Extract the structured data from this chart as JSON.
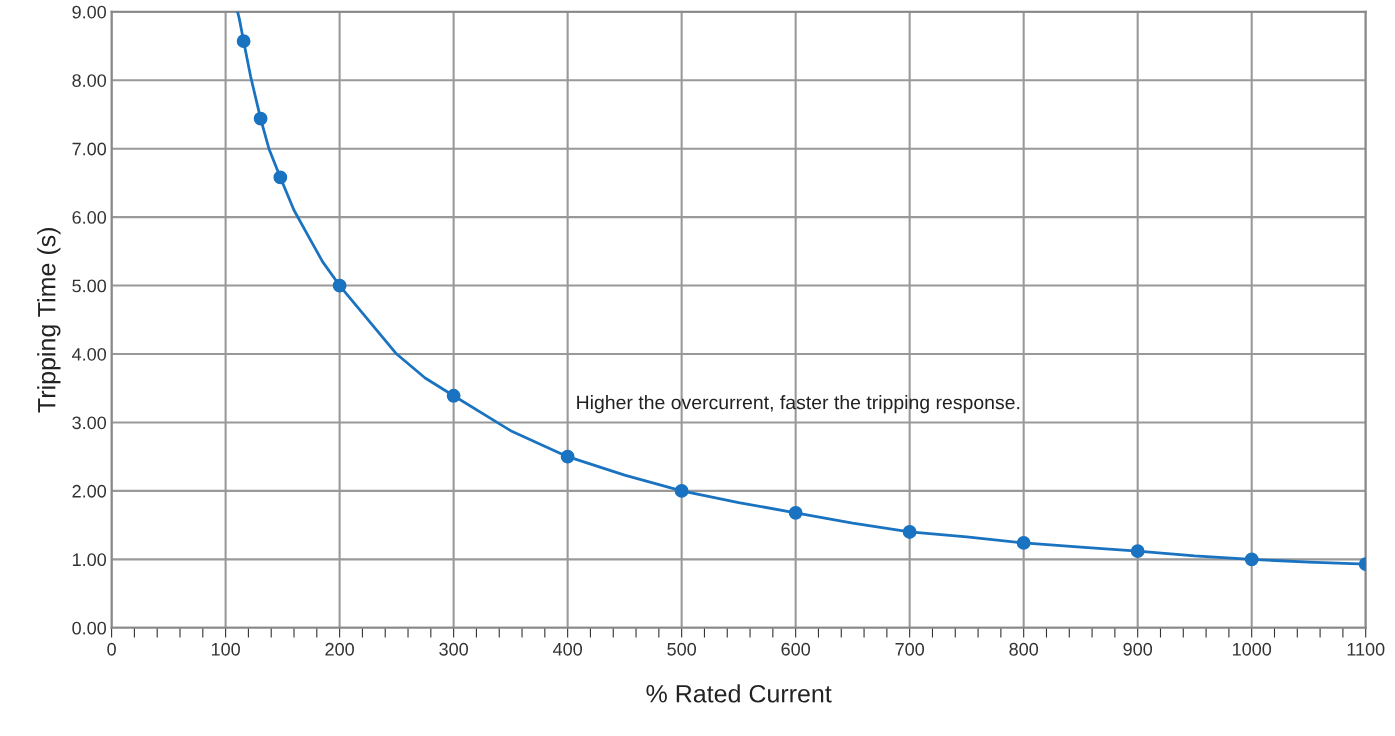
{
  "chart_data": {
    "type": "line",
    "xlabel": "% Rated Current",
    "ylabel": "Tripping Time (s)",
    "annotations": [
      "Higher the overcurrent, faster the tripping response."
    ],
    "series": [
      {
        "color": "#1a73c0",
        "x": [
          110.5,
          112,
          115.8,
          122,
          130.7,
          138,
          148,
          160,
          175,
          185,
          200,
          225,
          250,
          275,
          300,
          350,
          400,
          450,
          500,
          550,
          600,
          650,
          700,
          750,
          800,
          850,
          900,
          950,
          1000,
          1050,
          1100
        ],
        "values": [
          9.0,
          8.9,
          8.57,
          8.05,
          7.44,
          7.0,
          6.58,
          6.1,
          5.65,
          5.35,
          5.0,
          4.5,
          4.0,
          3.65,
          3.39,
          2.88,
          2.5,
          2.23,
          2.0,
          1.83,
          1.68,
          1.53,
          1.4,
          1.33,
          1.24,
          1.18,
          1.12,
          1.05,
          1.0,
          0.96,
          0.93
        ],
        "marker": "none"
      },
      {
        "type": "scatter",
        "color": "#1a73c0",
        "x": [
          115.8,
          130.7,
          148,
          200,
          300,
          400,
          500,
          600,
          700,
          800,
          900,
          1000,
          1100
        ],
        "values": [
          8.57,
          7.44,
          6.58,
          5.0,
          3.39,
          2.5,
          2.0,
          1.68,
          1.4,
          1.24,
          1.12,
          1.0,
          0.93
        ],
        "marker": "circle"
      }
    ],
    "xlim": [
      0,
      1100
    ],
    "xticks": [
      0,
      {
        "value": 20,
        "label": null
      },
      {
        "value": 40,
        "label": null
      },
      {
        "value": 60,
        "label": null
      },
      {
        "value": 80,
        "label": null
      },
      100,
      {
        "value": 120,
        "label": null
      },
      {
        "value": 140,
        "label": null
      },
      {
        "value": 160,
        "label": null
      },
      {
        "value": 180,
        "label": null
      },
      200,
      {
        "value": 220,
        "label": null
      },
      {
        "value": 240,
        "label": null
      },
      {
        "value": 260,
        "label": null
      },
      {
        "value": 280,
        "label": null
      },
      300,
      {
        "value": 320,
        "label": null
      },
      {
        "value": 340,
        "label": null
      },
      {
        "value": 360,
        "label": null
      },
      {
        "value": 380,
        "label": null
      },
      400,
      {
        "value": 420,
        "label": null
      },
      {
        "value": 440,
        "label": null
      },
      {
        "value": 460,
        "label": null
      },
      {
        "value": 480,
        "label": null
      },
      500,
      {
        "value": 520,
        "label": null
      },
      {
        "value": 540,
        "label": null
      },
      {
        "value": 560,
        "label": null
      },
      {
        "value": 580,
        "label": null
      },
      600,
      {
        "value": 620,
        "label": null
      },
      {
        "value": 640,
        "label": null
      },
      {
        "value": 660,
        "label": null
      },
      {
        "value": 680,
        "label": null
      },
      700,
      {
        "value": 720,
        "label": null
      },
      {
        "value": 740,
        "label": null
      },
      {
        "value": 760,
        "label": null
      },
      {
        "value": 780,
        "label": null
      },
      800,
      {
        "value": 820,
        "label": null
      },
      {
        "value": 840,
        "label": null
      },
      {
        "value": 860,
        "label": null
      },
      {
        "value": 880,
        "label": null
      },
      900,
      {
        "value": 920,
        "label": null
      },
      {
        "value": 940,
        "label": null
      },
      {
        "value": 960,
        "label": null
      },
      {
        "value": 980,
        "label": null
      },
      1000,
      {
        "value": 1020,
        "label": null
      },
      {
        "value": 1040,
        "label": null
      },
      {
        "value": 1060,
        "label": null
      },
      {
        "value": 1080,
        "label": null
      },
      1100
    ],
    "ylim": [
      0,
      9
    ],
    "yticks": [
      {
        "value": 0,
        "label": "0.00"
      },
      {
        "value": 1,
        "label": "1.00"
      },
      {
        "value": 2,
        "label": "2.00"
      },
      {
        "value": 3,
        "label": "3.00"
      },
      {
        "value": 4,
        "label": "4.00"
      },
      {
        "value": 5,
        "label": "5.00"
      },
      {
        "value": 6,
        "label": "6.00"
      },
      {
        "value": 7,
        "label": "7.00"
      },
      {
        "value": 8,
        "label": "8.00"
      },
      {
        "value": 9,
        "label": "9.00"
      }
    ],
    "grid": true,
    "legend": false
  }
}
